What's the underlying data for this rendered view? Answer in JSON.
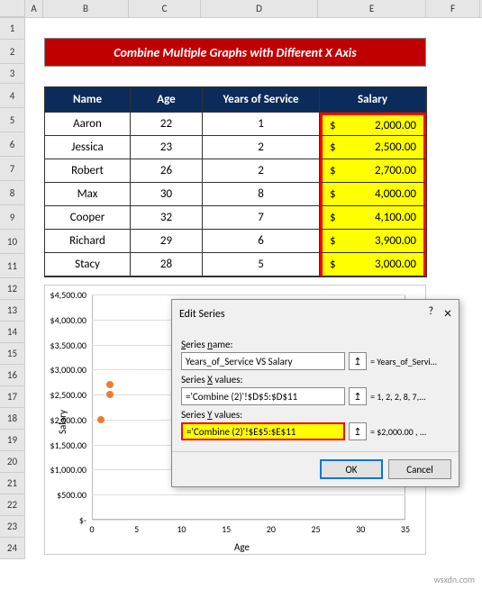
{
  "columns": [
    "A",
    "B",
    "C",
    "D",
    "E",
    "F"
  ],
  "rowCount": 24,
  "banner": "Combine Multiple Graphs with Different X Axis",
  "table": {
    "headers": {
      "name": "Name",
      "age": "Age",
      "service": "Years of Service",
      "salary": "Salary"
    },
    "rows": [
      {
        "name": "Aaron",
        "age": "22",
        "service": "1",
        "salary_sym": "$",
        "salary_val": "2,000.00"
      },
      {
        "name": "Jessica",
        "age": "23",
        "service": "2",
        "salary_sym": "$",
        "salary_val": "2,500.00"
      },
      {
        "name": "Robert",
        "age": "26",
        "service": "2",
        "salary_sym": "$",
        "salary_val": "2,700.00"
      },
      {
        "name": "Max",
        "age": "30",
        "service": "8",
        "salary_sym": "$",
        "salary_val": "4,000.00"
      },
      {
        "name": "Cooper",
        "age": "32",
        "service": "7",
        "salary_sym": "$",
        "salary_val": "4,100.00"
      },
      {
        "name": "Richard",
        "age": "29",
        "service": "6",
        "salary_sym": "$",
        "salary_val": "3,900.00"
      },
      {
        "name": "Stacy",
        "age": "28",
        "service": "5",
        "salary_sym": "$",
        "salary_val": "3,000.00"
      }
    ],
    "header_bg": "#0b2b5a",
    "highlight_bg": "#ffff00",
    "highlight_border": "#ff0000"
  },
  "chart": {
    "ylabel": "Salary",
    "xlabel": "Age",
    "yticks": [
      "$4,500.00",
      "$4,000.00",
      "$3,500.00",
      "$3,000.00",
      "$2,500.00",
      "$2,000.00",
      "$1,500.00",
      "$1,000.00",
      "$500.00",
      "$-"
    ],
    "xticks": [
      "0",
      "5",
      "10",
      "15",
      "20",
      "25",
      "30",
      "35"
    ],
    "marker_color": "#ed7d31",
    "points": [
      {
        "x": 1,
        "y": 2000
      },
      {
        "x": 2,
        "y": 2500
      },
      {
        "x": 2,
        "y": 2700
      }
    ],
    "ymin": 0,
    "ymax": 4500,
    "xmin": 0,
    "xmax": 35
  },
  "dialog": {
    "title": "Edit Series",
    "help": "?",
    "close": "×",
    "labels": {
      "name": "Series name:",
      "x": "Series X values:",
      "y": "Series Y values:"
    },
    "values": {
      "name": "Years_of_Service VS Salary",
      "x": "='Combine (2)'!$D$5:$D$11",
      "y": "='Combine (2)'!$E$5:$E$11"
    },
    "results": {
      "name": "= Years_of_Servi...",
      "x": "= 1, 2, 2, 8, 7,...",
      "y": "= $2,000.00 , ..."
    },
    "ok": "OK",
    "cancel": "Cancel"
  },
  "watermark": "wsxdn.com"
}
